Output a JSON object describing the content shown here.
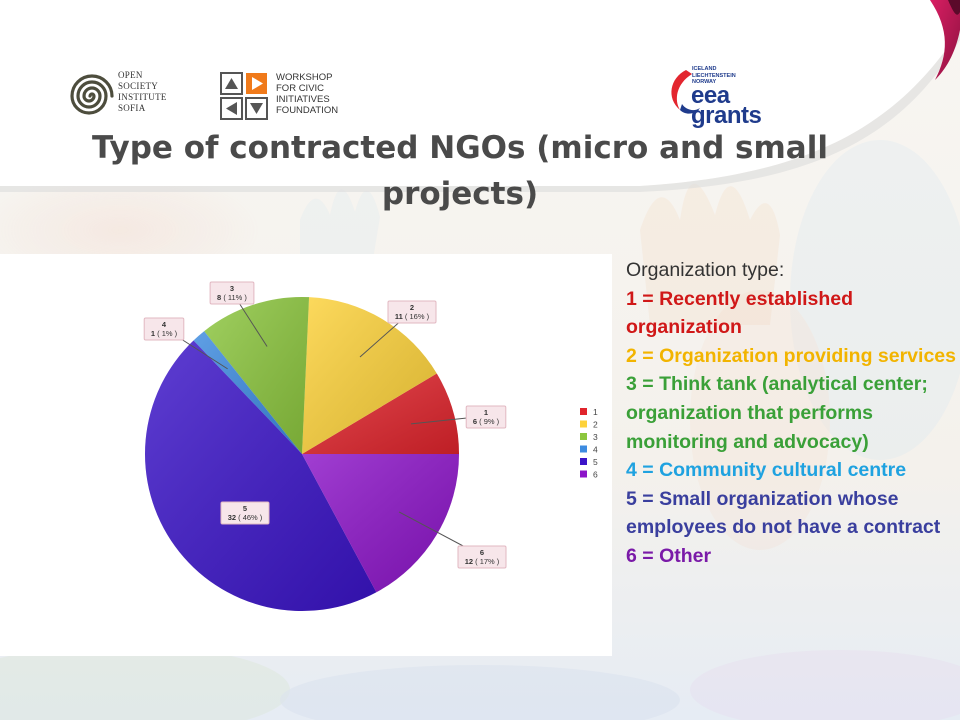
{
  "logos": {
    "osi_lines": [
      "OPEN",
      "SOCIETY",
      "INSTITUTE",
      "SOFIA"
    ],
    "workshop_lines": [
      "WORKSHOP",
      "FOR CIVIC",
      "INITIATIVES",
      "FOUNDATION"
    ],
    "eea_countries": [
      "ICELAND",
      "LIECHTENSTEIN",
      "NORWAY"
    ],
    "eea_word_1": "eea",
    "eea_word_2": "grants"
  },
  "title_line_1": "Type of contracted NGOs (micro and small",
  "title_line_2": "projects)",
  "legend_text": {
    "heading": "Organization type:",
    "items": [
      "1 = Recently established organization",
      "2 = Organization providing services",
      "3 = Think tank (analytical center; organization that performs monitoring and advocacy)",
      "4 = Community cultural centre",
      "5 = Small organization whose employees do not have a contract",
      "6 = Other"
    ]
  },
  "chart_data": {
    "type": "pie",
    "categories": [
      "1",
      "2",
      "3",
      "4",
      "5",
      "6"
    ],
    "values": [
      6,
      11,
      8,
      1,
      32,
      12
    ],
    "percent_labels": [
      "( 9% )",
      "( 16% )",
      "( 11% )",
      "( 1% )",
      "( 46% )",
      "( 17% )"
    ],
    "colors": [
      "#e0242c",
      "#fdd23a",
      "#8cc63e",
      "#3d8be0",
      "#3b14c8",
      "#8c14c8"
    ],
    "legend": [
      "1",
      "2",
      "3",
      "4",
      "5",
      "6"
    ],
    "legend_position": "right"
  }
}
